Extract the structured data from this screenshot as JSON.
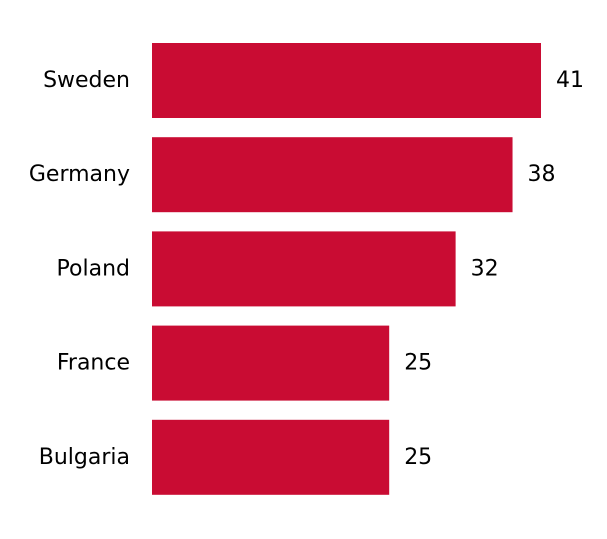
{
  "chart_data": {
    "type": "bar",
    "orientation": "horizontal",
    "categories": [
      "Sweden",
      "Germany",
      "Poland",
      "France",
      "Bulgaria"
    ],
    "values": [
      41,
      38,
      32,
      25,
      25
    ],
    "value_labels": [
      "41",
      "38",
      "32",
      "25",
      "25"
    ],
    "xlim": [
      0,
      41
    ],
    "bar_color": "#c90c33",
    "grid": false,
    "axes_visible": false
  }
}
